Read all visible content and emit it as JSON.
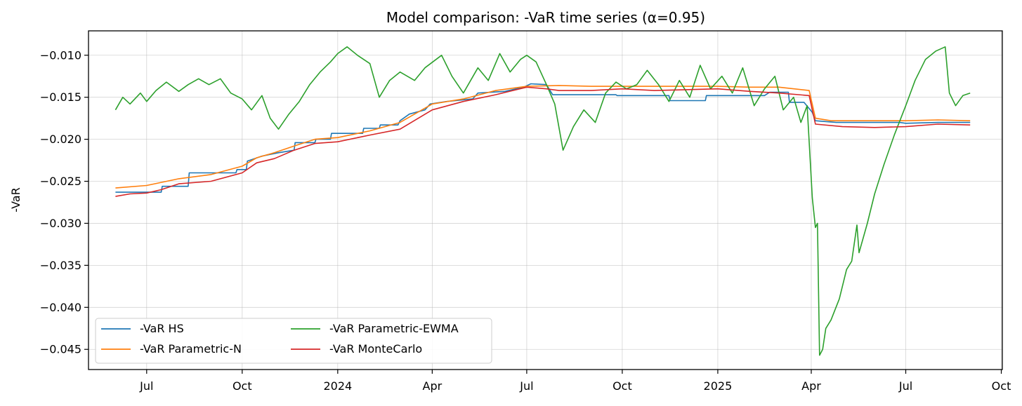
{
  "chart_data": {
    "type": "line",
    "title": "Model comparison: -VaR time series (α=0.95)",
    "xlabel": "",
    "ylabel": "-VaR",
    "x_ticks": [
      "Jul",
      "Oct",
      "2024",
      "Apr",
      "Jul",
      "Oct",
      "2025",
      "Apr",
      "Jul",
      "Oct"
    ],
    "x_tick_dates": [
      "2023-07-01",
      "2023-10-01",
      "2024-01-01",
      "2024-04-01",
      "2024-07-01",
      "2024-10-01",
      "2025-01-01",
      "2025-04-01",
      "2025-07-01",
      "2025-10-01"
    ],
    "y_ticks": [
      "−0.010",
      "−0.015",
      "−0.020",
      "−0.025",
      "−0.030",
      "−0.035",
      "−0.040",
      "−0.045"
    ],
    "y_tick_values": [
      -0.01,
      -0.015,
      -0.02,
      -0.025,
      -0.03,
      -0.035,
      -0.04,
      -0.045
    ],
    "xlim": [
      "2023-05-06",
      "2025-10-02"
    ],
    "ylim": [
      -0.0474,
      -0.0071
    ],
    "grid": true,
    "legend": {
      "placement": "lower-left",
      "columns": 2
    },
    "series": [
      {
        "name": "-VaR HS",
        "color": "#1f77b4",
        "points": [
          [
            "2023-06-01",
            -0.0263
          ],
          [
            "2023-07-15",
            -0.0263
          ],
          [
            "2023-07-16",
            -0.0256
          ],
          [
            "2023-08-10",
            -0.0256
          ],
          [
            "2023-08-11",
            -0.024
          ],
          [
            "2023-09-25",
            -0.024
          ],
          [
            "2023-09-26",
            -0.0236
          ],
          [
            "2023-10-05",
            -0.0236
          ],
          [
            "2023-10-06",
            -0.0226
          ],
          [
            "2023-10-20",
            -0.022
          ],
          [
            "2023-11-05",
            -0.0216
          ],
          [
            "2023-11-20",
            -0.0213
          ],
          [
            "2023-11-21",
            -0.0204
          ],
          [
            "2023-12-10",
            -0.0204
          ],
          [
            "2023-12-11",
            -0.02
          ],
          [
            "2023-12-25",
            -0.02
          ],
          [
            "2023-12-26",
            -0.0193
          ],
          [
            "2024-01-25",
            -0.0193
          ],
          [
            "2024-01-26",
            -0.0187
          ],
          [
            "2024-02-10",
            -0.0187
          ],
          [
            "2024-02-11",
            -0.0183
          ],
          [
            "2024-02-28",
            -0.0183
          ],
          [
            "2024-03-01",
            -0.0178
          ],
          [
            "2024-03-10",
            -0.017
          ],
          [
            "2024-03-25",
            -0.0165
          ],
          [
            "2024-03-30",
            -0.0158
          ],
          [
            "2024-04-15",
            -0.0155
          ],
          [
            "2024-05-10",
            -0.0152
          ],
          [
            "2024-05-15",
            -0.0145
          ],
          [
            "2024-06-10",
            -0.0143
          ],
          [
            "2024-06-28",
            -0.0138
          ],
          [
            "2024-07-05",
            -0.0134
          ],
          [
            "2024-07-20",
            -0.0135
          ],
          [
            "2024-07-26",
            -0.0147
          ],
          [
            "2024-09-25",
            -0.0147
          ],
          [
            "2024-09-26",
            -0.0148
          ],
          [
            "2024-11-15",
            -0.0148
          ],
          [
            "2024-11-16",
            -0.0154
          ],
          [
            "2024-12-20",
            -0.0154
          ],
          [
            "2024-12-21",
            -0.0148
          ],
          [
            "2025-02-15",
            -0.0148
          ],
          [
            "2025-02-20",
            -0.0144
          ],
          [
            "2025-03-10",
            -0.0144
          ],
          [
            "2025-03-11",
            -0.0156
          ],
          [
            "2025-03-25",
            -0.0156
          ],
          [
            "2025-04-02",
            -0.0168
          ],
          [
            "2025-04-05",
            -0.0178
          ],
          [
            "2025-04-25",
            -0.018
          ],
          [
            "2025-05-10",
            -0.018
          ],
          [
            "2025-06-25",
            -0.018
          ],
          [
            "2025-07-01",
            -0.0181
          ],
          [
            "2025-08-01",
            -0.018
          ],
          [
            "2025-09-01",
            -0.018
          ]
        ]
      },
      {
        "name": "-VaR Parametric-N",
        "color": "#ff7f0e",
        "points": [
          [
            "2023-06-01",
            -0.0258
          ],
          [
            "2023-07-01",
            -0.0255
          ],
          [
            "2023-08-01",
            -0.0247
          ],
          [
            "2023-09-01",
            -0.0242
          ],
          [
            "2023-10-01",
            -0.0232
          ],
          [
            "2023-10-15",
            -0.0222
          ],
          [
            "2023-11-01",
            -0.0216
          ],
          [
            "2023-11-20",
            -0.0208
          ],
          [
            "2023-12-10",
            -0.02
          ],
          [
            "2024-01-01",
            -0.0198
          ],
          [
            "2024-02-01",
            -0.019
          ],
          [
            "2024-03-01",
            -0.018
          ],
          [
            "2024-04-01",
            -0.0158
          ],
          [
            "2024-05-01",
            -0.0152
          ],
          [
            "2024-06-01",
            -0.0142
          ],
          [
            "2024-07-01",
            -0.0137
          ],
          [
            "2024-08-01",
            -0.0136
          ],
          [
            "2024-09-01",
            -0.0137
          ],
          [
            "2024-10-01",
            -0.0137
          ],
          [
            "2024-11-01",
            -0.0137
          ],
          [
            "2024-12-01",
            -0.0137
          ],
          [
            "2025-01-01",
            -0.0137
          ],
          [
            "2025-02-01",
            -0.0138
          ],
          [
            "2025-03-01",
            -0.0138
          ],
          [
            "2025-03-30",
            -0.0142
          ],
          [
            "2025-04-05",
            -0.0175
          ],
          [
            "2025-04-20",
            -0.0178
          ],
          [
            "2025-05-15",
            -0.0178
          ],
          [
            "2025-07-01",
            -0.0178
          ],
          [
            "2025-08-01",
            -0.0177
          ],
          [
            "2025-09-01",
            -0.0178
          ]
        ]
      },
      {
        "name": "-VaR Parametric-EWMA",
        "color": "#2ca02c",
        "points": [
          [
            "2023-06-01",
            -0.0165
          ],
          [
            "2023-06-08",
            -0.015
          ],
          [
            "2023-06-15",
            -0.0158
          ],
          [
            "2023-06-25",
            -0.0145
          ],
          [
            "2023-07-01",
            -0.0155
          ],
          [
            "2023-07-10",
            -0.0142
          ],
          [
            "2023-07-20",
            -0.0132
          ],
          [
            "2023-08-01",
            -0.0143
          ],
          [
            "2023-08-10",
            -0.0135
          ],
          [
            "2023-08-20",
            -0.0128
          ],
          [
            "2023-08-30",
            -0.0135
          ],
          [
            "2023-09-10",
            -0.0128
          ],
          [
            "2023-09-20",
            -0.0145
          ],
          [
            "2023-10-01",
            -0.0152
          ],
          [
            "2023-10-10",
            -0.0165
          ],
          [
            "2023-10-20",
            -0.0148
          ],
          [
            "2023-10-28",
            -0.0175
          ],
          [
            "2023-11-05",
            -0.0188
          ],
          [
            "2023-11-15",
            -0.017
          ],
          [
            "2023-11-25",
            -0.0155
          ],
          [
            "2023-12-05",
            -0.0135
          ],
          [
            "2023-12-15",
            -0.012
          ],
          [
            "2023-12-25",
            -0.0108
          ],
          [
            "2024-01-01",
            -0.0098
          ],
          [
            "2024-01-10",
            -0.009
          ],
          [
            "2024-01-20",
            -0.01
          ],
          [
            "2024-02-01",
            -0.011
          ],
          [
            "2024-02-10",
            -0.015
          ],
          [
            "2024-02-20",
            -0.013
          ],
          [
            "2024-03-01",
            -0.012
          ],
          [
            "2024-03-15",
            -0.013
          ],
          [
            "2024-03-25",
            -0.0115
          ],
          [
            "2024-04-10",
            -0.01
          ],
          [
            "2024-04-20",
            -0.0125
          ],
          [
            "2024-05-01",
            -0.0145
          ],
          [
            "2024-05-15",
            -0.0115
          ],
          [
            "2024-05-25",
            -0.013
          ],
          [
            "2024-06-05",
            -0.0098
          ],
          [
            "2024-06-15",
            -0.012
          ],
          [
            "2024-06-25",
            -0.0105
          ],
          [
            "2024-07-01",
            -0.01
          ],
          [
            "2024-07-10",
            -0.0108
          ],
          [
            "2024-07-20",
            -0.0135
          ],
          [
            "2024-07-28",
            -0.0158
          ],
          [
            "2024-08-05",
            -0.0213
          ],
          [
            "2024-08-15",
            -0.0185
          ],
          [
            "2024-08-25",
            -0.0165
          ],
          [
            "2024-09-05",
            -0.018
          ],
          [
            "2024-09-15",
            -0.0145
          ],
          [
            "2024-09-25",
            -0.0132
          ],
          [
            "2024-10-05",
            -0.014
          ],
          [
            "2024-10-15",
            -0.0135
          ],
          [
            "2024-10-25",
            -0.0118
          ],
          [
            "2024-11-05",
            -0.0135
          ],
          [
            "2024-11-15",
            -0.0155
          ],
          [
            "2024-11-25",
            -0.013
          ],
          [
            "2024-12-05",
            -0.015
          ],
          [
            "2024-12-15",
            -0.0112
          ],
          [
            "2024-12-25",
            -0.014
          ],
          [
            "2025-01-05",
            -0.0125
          ],
          [
            "2025-01-15",
            -0.0145
          ],
          [
            "2025-01-25",
            -0.0115
          ],
          [
            "2025-02-05",
            -0.016
          ],
          [
            "2025-02-15",
            -0.014
          ],
          [
            "2025-02-25",
            -0.0125
          ],
          [
            "2025-03-05",
            -0.0165
          ],
          [
            "2025-03-15",
            -0.015
          ],
          [
            "2025-03-22",
            -0.018
          ],
          [
            "2025-03-28",
            -0.016
          ],
          [
            "2025-04-02",
            -0.027
          ],
          [
            "2025-04-05",
            -0.0305
          ],
          [
            "2025-04-07",
            -0.03
          ],
          [
            "2025-04-09",
            -0.0457
          ],
          [
            "2025-04-12",
            -0.045
          ],
          [
            "2025-04-15",
            -0.0425
          ],
          [
            "2025-04-20",
            -0.0415
          ],
          [
            "2025-04-28",
            -0.039
          ],
          [
            "2025-05-05",
            -0.0355
          ],
          [
            "2025-05-10",
            -0.0345
          ],
          [
            "2025-05-15",
            -0.0302
          ],
          [
            "2025-05-17",
            -0.0335
          ],
          [
            "2025-05-25",
            -0.03
          ],
          [
            "2025-06-01",
            -0.0265
          ],
          [
            "2025-06-10",
            -0.023
          ],
          [
            "2025-06-20",
            -0.0195
          ],
          [
            "2025-07-01",
            -0.016
          ],
          [
            "2025-07-10",
            -0.013
          ],
          [
            "2025-07-20",
            -0.0105
          ],
          [
            "2025-07-30",
            -0.0095
          ],
          [
            "2025-08-08",
            -0.009
          ],
          [
            "2025-08-12",
            -0.0145
          ],
          [
            "2025-08-18",
            -0.016
          ],
          [
            "2025-08-25",
            -0.0148
          ],
          [
            "2025-09-01",
            -0.0145
          ]
        ]
      },
      {
        "name": "-VaR MonteCarlo",
        "color": "#d62728",
        "points": [
          [
            "2023-06-01",
            -0.0268
          ],
          [
            "2023-06-15",
            -0.0265
          ],
          [
            "2023-07-01",
            -0.0264
          ],
          [
            "2023-07-15",
            -0.026
          ],
          [
            "2023-08-01",
            -0.0253
          ],
          [
            "2023-09-01",
            -0.025
          ],
          [
            "2023-10-01",
            -0.024
          ],
          [
            "2023-10-15",
            -0.0228
          ],
          [
            "2023-11-01",
            -0.0223
          ],
          [
            "2023-11-20",
            -0.0213
          ],
          [
            "2023-12-10",
            -0.0205
          ],
          [
            "2024-01-01",
            -0.0203
          ],
          [
            "2024-02-01",
            -0.0195
          ],
          [
            "2024-03-01",
            -0.0188
          ],
          [
            "2024-04-01",
            -0.0165
          ],
          [
            "2024-05-01",
            -0.0155
          ],
          [
            "2024-06-01",
            -0.0147
          ],
          [
            "2024-07-01",
            -0.0138
          ],
          [
            "2024-07-20",
            -0.014
          ],
          [
            "2024-08-01",
            -0.0142
          ],
          [
            "2024-09-01",
            -0.0142
          ],
          [
            "2024-10-01",
            -0.014
          ],
          [
            "2024-11-01",
            -0.0142
          ],
          [
            "2024-12-01",
            -0.0141
          ],
          [
            "2025-01-01",
            -0.014
          ],
          [
            "2025-02-01",
            -0.0143
          ],
          [
            "2025-03-01",
            -0.0145
          ],
          [
            "2025-03-30",
            -0.0148
          ],
          [
            "2025-04-05",
            -0.0182
          ],
          [
            "2025-05-01",
            -0.0185
          ],
          [
            "2025-06-01",
            -0.0186
          ],
          [
            "2025-07-01",
            -0.0185
          ],
          [
            "2025-08-01",
            -0.0182
          ],
          [
            "2025-09-01",
            -0.0183
          ]
        ]
      }
    ]
  }
}
